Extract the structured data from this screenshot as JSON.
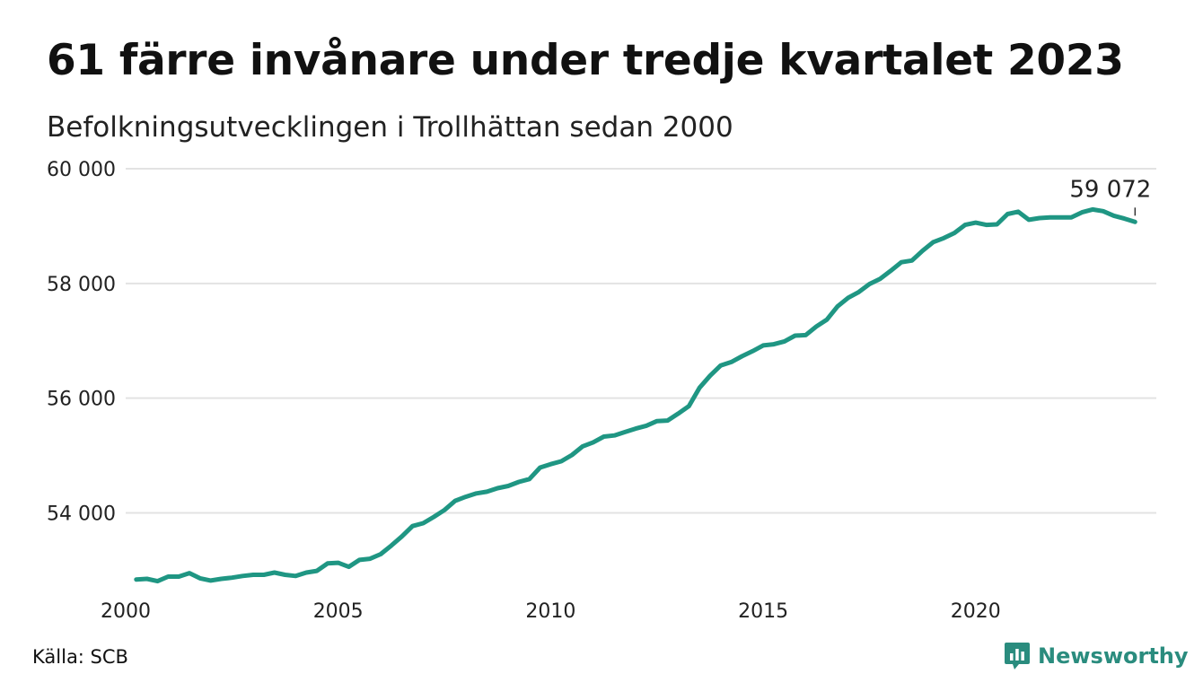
{
  "title": "61 färre invånare under tredje kvartalet 2023",
  "subtitle": "Befolkningsutvecklingen i Trollhättan sedan 2000",
  "source": "Källa: SCB",
  "brand": {
    "name": "Newsworthy",
    "color": "#2a8c7e",
    "icon": "newsworthy-logo-icon"
  },
  "chart_data": {
    "type": "line",
    "title": "61 färre invånare under tredje kvartalet 2023",
    "subtitle": "Befolkningsutvecklingen i Trollhättan sedan 2000",
    "xlabel": "",
    "ylabel": "",
    "xlim": [
      2000,
      2024.25
    ],
    "ylim": [
      52600,
      60000
    ],
    "x_ticks": [
      2000,
      2005,
      2010,
      2015,
      2020
    ],
    "x_tick_labels": [
      "2000",
      "2005",
      "2010",
      "2015",
      "2020"
    ],
    "y_ticks": [
      54000,
      56000,
      58000,
      60000
    ],
    "y_tick_labels": [
      "54 000",
      "56 000",
      "58 000",
      "60 000"
    ],
    "grid": true,
    "legend": "none",
    "line_color": "#1f9683",
    "annotation": {
      "x": 2023.75,
      "y": 59072,
      "label": "59 072"
    },
    "series": [
      {
        "x": [
          2000.25,
          2000.5,
          2000.75,
          2001.0,
          2001.25,
          2001.5,
          2001.75,
          2002.0,
          2002.25,
          2002.5,
          2002.75,
          2003.0,
          2003.25,
          2003.5,
          2003.75,
          2004.0,
          2004.25,
          2004.5,
          2004.75,
          2005.0,
          2005.25,
          2005.5,
          2005.75,
          2006.0,
          2006.25,
          2006.5,
          2006.75,
          2007.0,
          2007.25,
          2007.5,
          2007.75,
          2008.0,
          2008.25,
          2008.5,
          2008.75,
          2009.0,
          2009.25,
          2009.5,
          2009.75,
          2010.0,
          2010.25,
          2010.5,
          2010.75,
          2011.0,
          2011.25,
          2011.5,
          2011.75,
          2012.0,
          2012.25,
          2012.5,
          2012.75,
          2013.0,
          2013.25,
          2013.5,
          2013.75,
          2014.0,
          2014.25,
          2014.5,
          2014.75,
          2015.0,
          2015.25,
          2015.5,
          2015.75,
          2016.0,
          2016.25,
          2016.5,
          2016.75,
          2017.0,
          2017.25,
          2017.5,
          2017.75,
          2018.0,
          2018.25,
          2018.5,
          2018.75,
          2019.0,
          2019.25,
          2019.5,
          2019.75,
          2020.0,
          2020.25,
          2020.5,
          2020.75,
          2021.0,
          2021.25,
          2021.5,
          2021.75,
          2022.0,
          2022.25,
          2022.5,
          2022.75,
          2023.0,
          2023.25,
          2023.5,
          2023.75
        ],
        "values": [
          52840,
          52850,
          52810,
          52890,
          52890,
          52950,
          52860,
          52820,
          52850,
          52870,
          52900,
          52920,
          52920,
          52960,
          52920,
          52900,
          52960,
          52990,
          53120,
          53130,
          53060,
          53180,
          53200,
          53280,
          53430,
          53590,
          53770,
          53820,
          53930,
          54050,
          54210,
          54280,
          54340,
          54370,
          54430,
          54470,
          54540,
          54590,
          54790,
          54850,
          54900,
          55010,
          55160,
          55230,
          55330,
          55350,
          55410,
          55470,
          55520,
          55600,
          55610,
          55730,
          55860,
          56180,
          56390,
          56570,
          56630,
          56730,
          56820,
          56920,
          56940,
          56990,
          57090,
          57100,
          57250,
          57370,
          57600,
          57750,
          57850,
          57990,
          58080,
          58220,
          58370,
          58400,
          58570,
          58720,
          58790,
          58880,
          59020,
          59060,
          59020,
          59030,
          59210,
          59250,
          59110,
          59140,
          59150,
          59150,
          59150,
          59240,
          59290,
          59260,
          59180,
          59130,
          59072
        ]
      }
    ]
  }
}
